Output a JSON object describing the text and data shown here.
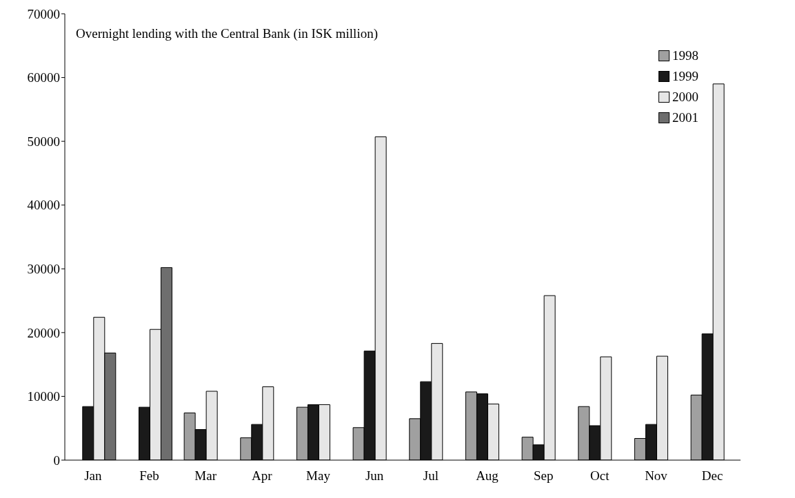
{
  "chart_data": {
    "type": "bar",
    "title": "Overnight lending with the Central Bank (in ISK million)",
    "categories": [
      "Jan",
      "Feb",
      "Mar",
      "Apr",
      "May",
      "Jun",
      "Jul",
      "Aug",
      "Sep",
      "Oct",
      "Nov",
      "Dec"
    ],
    "series": [
      {
        "name": "1998",
        "color": "#a0a0a0",
        "values": [
          null,
          null,
          7400,
          3500,
          8300,
          5100,
          6500,
          10700,
          3600,
          8400,
          3400,
          10200
        ]
      },
      {
        "name": "1999",
        "color": "#1a1a1a",
        "values": [
          8400,
          8300,
          4800,
          5600,
          8700,
          17100,
          12300,
          10400,
          2400,
          5400,
          5600,
          19800
        ]
      },
      {
        "name": "2000",
        "color": "#e6e6e6",
        "values": [
          22400,
          20500,
          10800,
          11500,
          8700,
          50700,
          18300,
          8800,
          25800,
          16200,
          16300,
          59000
        ]
      },
      {
        "name": "2001",
        "color": "#6e6e6e",
        "values": [
          16800,
          30200,
          null,
          null,
          null,
          null,
          null,
          null,
          null,
          null,
          null,
          null
        ]
      }
    ],
    "ylim": [
      0,
      70000
    ],
    "yticks": [
      0,
      10000,
      20000,
      30000,
      40000,
      50000,
      60000,
      70000
    ],
    "grid": false,
    "legend": "top right"
  }
}
